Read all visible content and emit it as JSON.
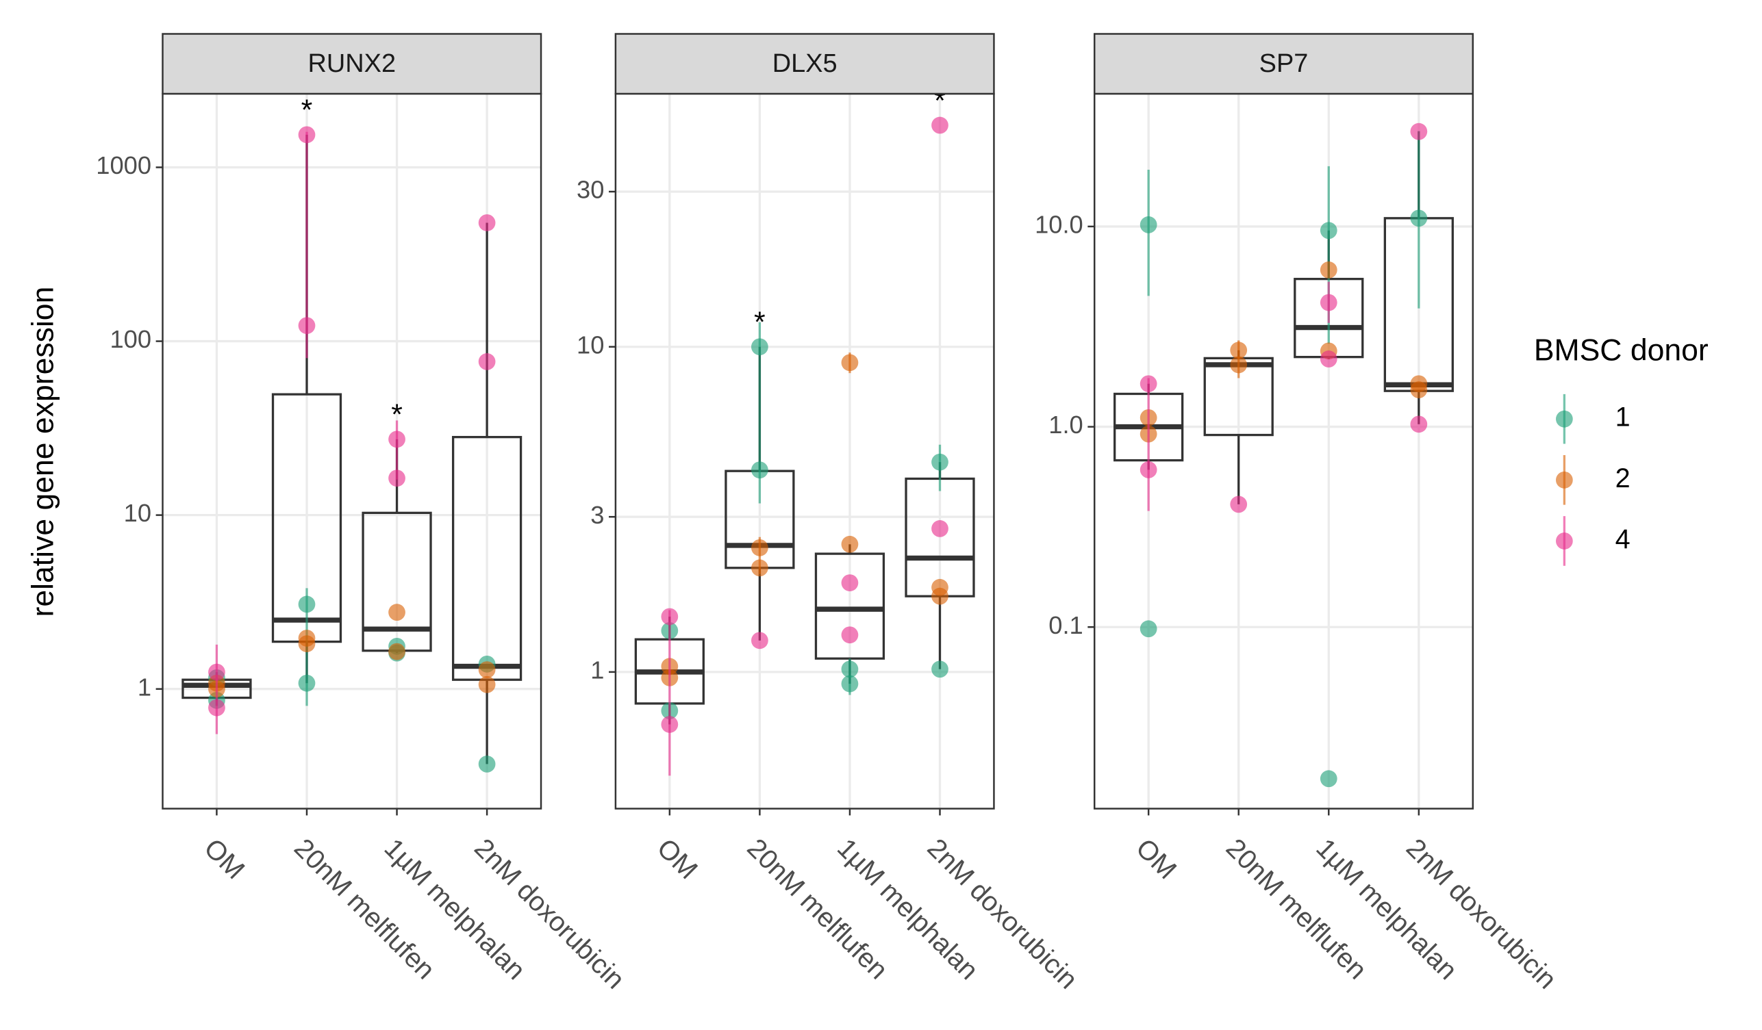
{
  "chart_data": {
    "type": "box",
    "y_label": "relative gene expression",
    "legend_title": "BMSC donor",
    "log_y": true,
    "grid": true,
    "categories": [
      "OM",
      "20nM melflufen",
      "1µM melphalan",
      "2nM doxorubicin"
    ],
    "series": [
      {
        "name": "1",
        "color": "#1b9e77"
      },
      {
        "name": "2",
        "color": "#d95f02"
      },
      {
        "name": "4",
        "color": "#e7298a"
      }
    ],
    "panels": [
      {
        "title": "RUNX2",
        "ylim": [
          0.205,
          2650
        ],
        "yticks": [
          1,
          10,
          100,
          1000
        ],
        "boxes": [
          {
            "whisker_low": 0.8,
            "q1": 0.89,
            "median": 1.05,
            "q3": 1.13,
            "whisker_high": 1.25
          },
          {
            "whisker_low": 1.08,
            "q1": 1.87,
            "median": 2.49,
            "q3": 49.5,
            "whisker_high": 1540
          },
          {
            "whisker_low": 1.61,
            "q1": 1.66,
            "median": 2.21,
            "q3": 10.3,
            "whisker_high": 27.3
          },
          {
            "whisker_low": 0.37,
            "q1": 1.13,
            "median": 1.35,
            "q3": 28.1,
            "whisker_high": 480
          }
        ],
        "points": [
          [
            [
              1.16,
              0.86
            ],
            [
              1.08,
              1.0
            ],
            [
              1.25,
              0.78
            ]
          ],
          [
            [
              3.07,
              1.08
            ],
            [
              1.96,
              1.82
            ],
            [
              1540,
              123
            ]
          ],
          [
            [
              1.76,
              1.61
            ],
            [
              2.76,
              1.64
            ],
            [
              27.3,
              16.3
            ]
          ],
          [
            [
              1.39,
              0.37
            ],
            [
              1.29,
              1.06
            ],
            [
              480,
              76.3
            ]
          ]
        ],
        "errors": [
          [
            null,
            null,
            [
              0.55,
              1.8
            ]
          ],
          [
            [
              0.8,
              3.8
            ],
            null,
            [
              80,
              1600
            ]
          ],
          [
            null,
            null,
            [
              16,
              35
            ]
          ],
          [
            null,
            null,
            null
          ]
        ],
        "significance": [
          null,
          "*",
          "*",
          null
        ]
      },
      {
        "title": "DLX5",
        "ylim": [
          0.38,
          60
        ],
        "yticks": [
          1,
          3,
          10,
          30
        ],
        "boxes": [
          {
            "whisker_low": 0.69,
            "q1": 0.8,
            "median": 1.0,
            "q3": 1.26,
            "whisker_high": 1.48
          },
          {
            "whisker_low": 1.25,
            "q1": 2.09,
            "median": 2.45,
            "q3": 4.15,
            "whisker_high": 10.0
          },
          {
            "whisker_low": 0.92,
            "q1": 1.1,
            "median": 1.56,
            "q3": 2.31,
            "whisker_high": 2.47
          },
          {
            "whisker_low": 1.02,
            "q1": 1.71,
            "median": 2.24,
            "q3": 3.93,
            "whisker_high": 4.42
          }
        ],
        "points": [
          [
            [
              1.34,
              0.76
            ],
            [
              1.04,
              0.96
            ],
            [
              1.48,
              0.69
            ]
          ],
          [
            [
              10.0,
              4.18
            ],
            [
              2.41,
              2.09
            ],
            [
              1.25
            ]
          ],
          [
            [
              1.02,
              0.92
            ],
            [
              8.94,
              2.47
            ],
            [
              1.88,
              1.3
            ]
          ],
          [
            [
              4.42,
              1.02
            ],
            [
              1.82,
              1.71
            ],
            [
              48,
              2.76
            ]
          ]
        ],
        "errors": [
          [
            null,
            null,
            [
              0.48,
              1.55
            ]
          ],
          [
            [
              3.3,
              11.9
            ],
            [
              2.0,
              2.6
            ],
            null
          ],
          [
            [
              0.85,
              1.1
            ],
            [
              8.3,
              9.6
            ],
            null
          ],
          [
            [
              3.6,
              5.0
            ],
            null,
            null
          ]
        ],
        "significance": [
          null,
          "*",
          null,
          "*"
        ]
      },
      {
        "title": "SP7",
        "ylim": [
          0.0124,
          46
        ],
        "yticks": [
          0.1,
          {
            "value": 1,
            "label": "1.0"
          },
          {
            "value": 10,
            "label": "10.0"
          }
        ],
        "boxes": [
          {
            "whisker_low": 0.61,
            "q1": 0.68,
            "median": 1.0,
            "q3": 1.46,
            "whisker_high": 1.64
          },
          {
            "whisker_low": 0.41,
            "q1": 0.91,
            "median": 2.04,
            "q3": 2.2,
            "whisker_high": 2.41
          },
          {
            "whisker_low": 2.18,
            "q1": 2.23,
            "median": 3.13,
            "q3": 5.47,
            "whisker_high": 9.55
          },
          {
            "whisker_low": 1.03,
            "q1": 1.51,
            "median": 1.62,
            "q3": 11.0,
            "whisker_high": 29.8
          }
        ],
        "points": [
          [
            [
              10.2,
              0.098
            ],
            [
              1.11,
              0.92
            ],
            [
              1.64,
              0.61
            ]
          ],
          [
            [],
            [
              2.41,
              2.04
            ],
            [
              0.41
            ]
          ],
          [
            [
              9.55,
              0.0175
            ],
            [
              6.07,
              2.39
            ],
            [
              4.17,
              2.18
            ]
          ],
          [
            [
              11.0
            ],
            [
              1.64,
              1.53
            ],
            [
              29.8,
              1.03
            ]
          ]
        ],
        "errors": [
          [
            [
              4.5,
              19.2
            ],
            null,
            [
              0.38,
              1.75
            ]
          ],
          [
            null,
            [
              1.75,
              2.7
            ],
            null
          ],
          [
            [
              2.6,
              20
            ],
            null,
            [
              3.3,
              5.3
            ]
          ],
          [
            [
              3.9,
              30
            ],
            null,
            null
          ]
        ],
        "significance": [
          null,
          null,
          null,
          null
        ]
      }
    ]
  }
}
